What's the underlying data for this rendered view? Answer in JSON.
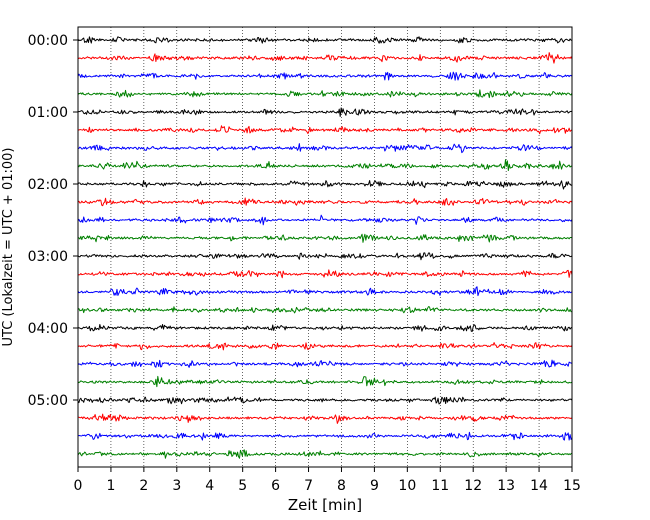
{
  "chart_data": {
    "type": "line",
    "title": "",
    "xlabel": "Zeit  [min]",
    "ylabel": "UTC (Lokalzeit = UTC + 01:00)",
    "xlim": [
      0,
      15
    ],
    "x_ticks": [
      "0",
      "1",
      "2",
      "3",
      "4",
      "5",
      "6",
      "7",
      "8",
      "9",
      "10",
      "11",
      "12",
      "13",
      "14",
      "15"
    ],
    "y_ticks": [
      "00:00",
      "01:00",
      "02:00",
      "03:00",
      "04:00",
      "05:00"
    ],
    "grid": "vertical dotted",
    "trace_interval_min": 15,
    "trace_count": 24,
    "trace_colors": [
      "#000000",
      "#ff0000",
      "#0000ff",
      "#008000"
    ],
    "notable_events": [
      {
        "trace": "05:00",
        "time_min": 10.1,
        "note": "spike"
      },
      {
        "trace": "00:30",
        "time_min": 12.6,
        "note": "burst"
      },
      {
        "trace": "02:00",
        "time_min": 2.0,
        "note": "burst"
      },
      {
        "trace": "02:30",
        "time_min": 7.4,
        "note": "spike"
      },
      {
        "trace": "01:15",
        "time_min": 7.0,
        "note": "burst"
      },
      {
        "trace": "04:45",
        "time_min": 9.3,
        "note": "spike"
      }
    ]
  }
}
